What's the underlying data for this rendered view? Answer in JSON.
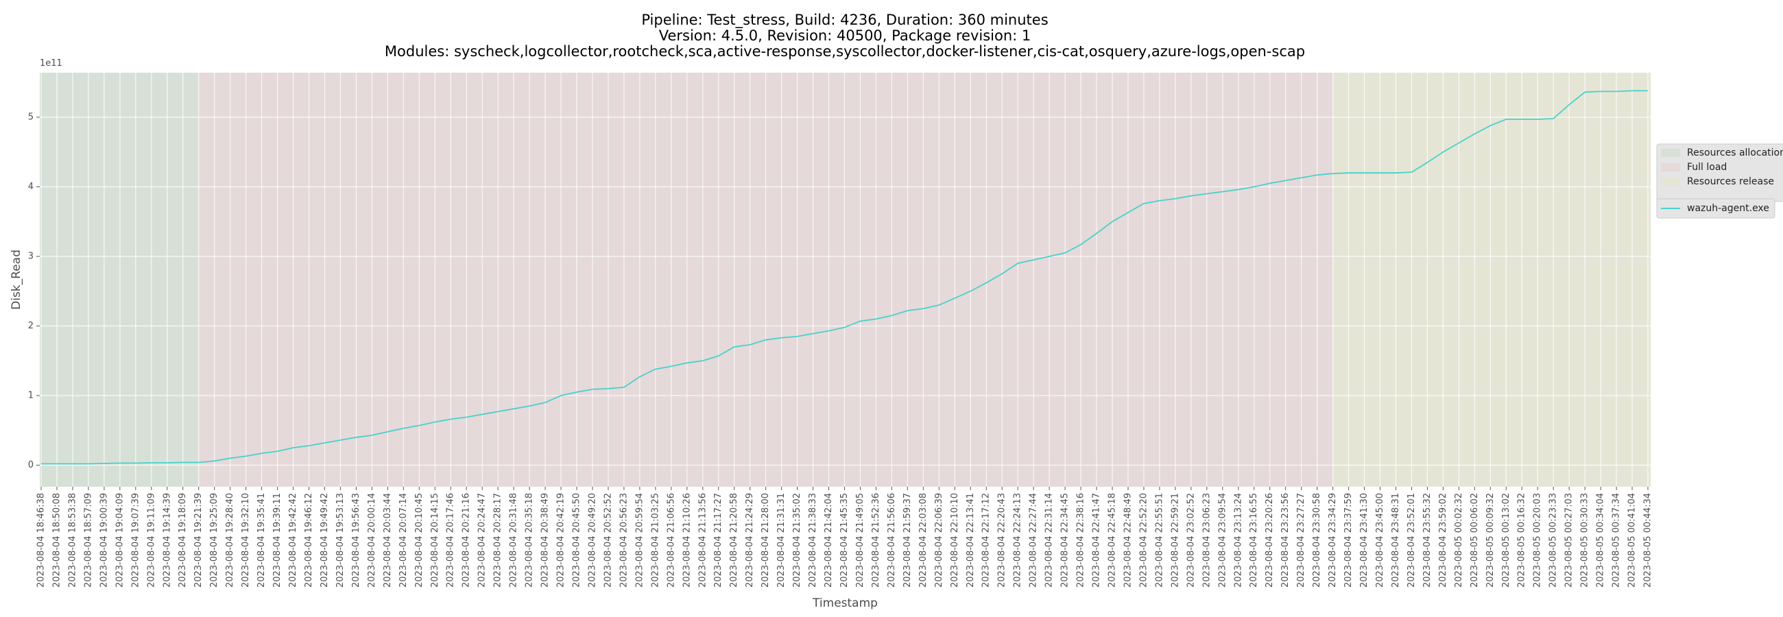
{
  "chart_data": {
    "type": "line",
    "title": [
      "Pipeline: Test_stress, Build: 4236, Duration: 360 minutes",
      "Version: 4.5.0, Revision: 40500, Package revision: 1",
      "Modules: syscheck,logcollector,rootcheck,sca,active-response,syscollector,docker-listener,cis-cat,osquery,azure-logs,open-scap"
    ],
    "x_label": "Timestamp",
    "y_label": "Disk_Read",
    "y_offset_label": "1e11",
    "categories": [
      "2023-08-04 18:46:38",
      "2023-08-04 18:50:08",
      "2023-08-04 18:53:38",
      "2023-08-04 18:57:09",
      "2023-08-04 19:00:39",
      "2023-08-04 19:04:09",
      "2023-08-04 19:07:39",
      "2023-08-04 19:11:09",
      "2023-08-04 19:14:39",
      "2023-08-04 19:18:09",
      "2023-08-04 19:21:39",
      "2023-08-04 19:25:09",
      "2023-08-04 19:28:40",
      "2023-08-04 19:32:10",
      "2023-08-04 19:35:41",
      "2023-08-04 19:39:11",
      "2023-08-04 19:42:42",
      "2023-08-04 19:46:12",
      "2023-08-04 19:49:42",
      "2023-08-04 19:53:13",
      "2023-08-04 19:56:43",
      "2023-08-04 20:00:14",
      "2023-08-04 20:03:44",
      "2023-08-04 20:07:14",
      "2023-08-04 20:10:45",
      "2023-08-04 20:14:15",
      "2023-08-04 20:17:46",
      "2023-08-04 20:21:16",
      "2023-08-04 20:24:47",
      "2023-08-04 20:28:17",
      "2023-08-04 20:31:48",
      "2023-08-04 20:35:18",
      "2023-08-04 20:38:49",
      "2023-08-04 20:42:19",
      "2023-08-04 20:45:50",
      "2023-08-04 20:49:20",
      "2023-08-04 20:52:52",
      "2023-08-04 20:56:23",
      "2023-08-04 20:59:54",
      "2023-08-04 21:03:25",
      "2023-08-04 21:06:56",
      "2023-08-04 21:10:26",
      "2023-08-04 21:13:56",
      "2023-08-04 21:17:27",
      "2023-08-04 21:20:58",
      "2023-08-04 21:24:29",
      "2023-08-04 21:28:00",
      "2023-08-04 21:31:31",
      "2023-08-04 21:35:02",
      "2023-08-04 21:38:33",
      "2023-08-04 21:42:04",
      "2023-08-04 21:45:35",
      "2023-08-04 21:49:05",
      "2023-08-04 21:52:36",
      "2023-08-04 21:56:06",
      "2023-08-04 21:59:37",
      "2023-08-04 22:03:08",
      "2023-08-04 22:06:39",
      "2023-08-04 22:10:10",
      "2023-08-04 22:13:41",
      "2023-08-04 22:17:12",
      "2023-08-04 22:20:43",
      "2023-08-04 22:24:13",
      "2023-08-04 22:27:44",
      "2023-08-04 22:31:14",
      "2023-08-04 22:34:45",
      "2023-08-04 22:38:16",
      "2023-08-04 22:41:47",
      "2023-08-04 22:45:18",
      "2023-08-04 22:48:49",
      "2023-08-04 22:52:20",
      "2023-08-04 22:55:51",
      "2023-08-04 22:59:21",
      "2023-08-04 23:02:52",
      "2023-08-04 23:06:23",
      "2023-08-04 23:09:54",
      "2023-08-04 23:13:24",
      "2023-08-04 23:16:55",
      "2023-08-04 23:20:26",
      "2023-08-04 23:23:56",
      "2023-08-04 23:27:27",
      "2023-08-04 23:30:58",
      "2023-08-04 23:34:29",
      "2023-08-04 23:37:59",
      "2023-08-04 23:41:30",
      "2023-08-04 23:45:00",
      "2023-08-04 23:48:31",
      "2023-08-04 23:52:01",
      "2023-08-04 23:55:32",
      "2023-08-04 23:59:02",
      "2023-08-05 00:02:32",
      "2023-08-05 00:06:02",
      "2023-08-05 00:09:32",
      "2023-08-05 00:13:02",
      "2023-08-05 00:16:32",
      "2023-08-05 00:20:03",
      "2023-08-05 00:23:33",
      "2023-08-05 00:27:03",
      "2023-08-05 00:30:33",
      "2023-08-05 00:34:04",
      "2023-08-05 00:37:34",
      "2023-08-05 00:41:04",
      "2023-08-05 00:44:34"
    ],
    "series": [
      {
        "name": "wazuh-agent.exe",
        "color": "#48d1cc",
        "values": [
          0.02,
          0.02,
          0.02,
          0.02,
          0.025,
          0.03,
          0.03,
          0.035,
          0.035,
          0.04,
          0.04,
          0.06,
          0.1,
          0.13,
          0.17,
          0.2,
          0.25,
          0.28,
          0.32,
          0.36,
          0.4,
          0.43,
          0.48,
          0.53,
          0.57,
          0.62,
          0.66,
          0.69,
          0.73,
          0.77,
          0.81,
          0.85,
          0.9,
          1.0,
          1.05,
          1.09,
          1.1,
          1.12,
          1.27,
          1.38,
          1.42,
          1.47,
          1.5,
          1.57,
          1.7,
          1.73,
          1.8,
          1.83,
          1.85,
          1.89,
          1.93,
          1.98,
          2.07,
          2.1,
          2.15,
          2.22,
          2.25,
          2.3,
          2.4,
          2.5,
          2.62,
          2.75,
          2.9,
          2.95,
          3.0,
          3.05,
          3.17,
          3.33,
          3.5,
          3.63,
          3.76,
          3.8,
          3.83,
          3.87,
          3.9,
          3.93,
          3.96,
          4.0,
          4.05,
          4.09,
          4.13,
          4.17,
          4.19,
          4.2,
          4.2,
          4.2,
          4.2,
          4.21,
          4.35,
          4.5,
          4.63,
          4.76,
          4.88,
          4.97,
          4.97,
          4.97,
          4.98,
          5.18,
          5.36,
          5.37,
          5.37,
          5.38,
          5.38
        ]
      }
    ],
    "phases": [
      {
        "name": "Resources allocation",
        "color": "#d7e0d7",
        "start": "2023-08-04 18:46:38",
        "end": "2023-08-04 19:21:39"
      },
      {
        "name": "Full load",
        "color": "#e5d9d9",
        "start": "2023-08-04 19:21:39",
        "end": "2023-08-04 23:34:29"
      },
      {
        "name": "Resources release",
        "color": "#e5e5d6",
        "start": "2023-08-04 23:34:29",
        "end": "2023-08-05 00:44:34"
      }
    ],
    "ylim": [
      -0.31,
      5.64
    ],
    "yticks": [
      0,
      1,
      2,
      3,
      4,
      5
    ],
    "grid": true,
    "legend": "right"
  }
}
